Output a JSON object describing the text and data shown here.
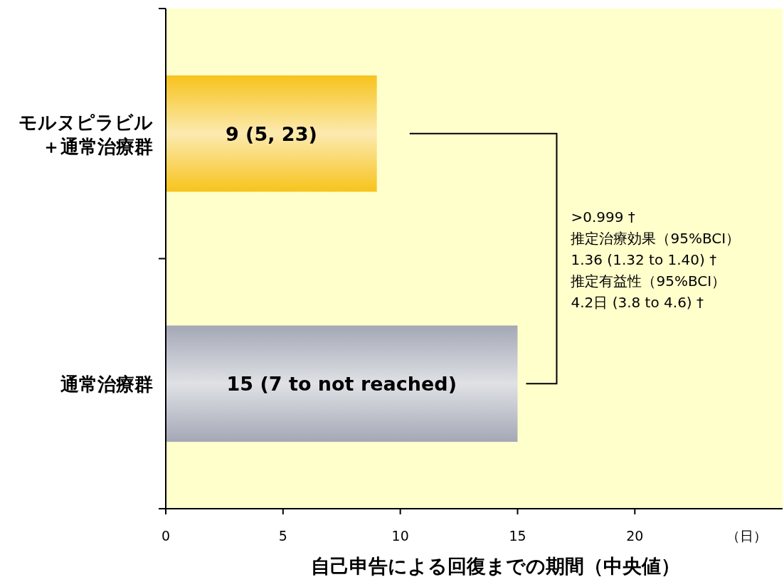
{
  "chart_data": {
    "type": "bar",
    "orientation": "horizontal",
    "categories": [
      "モルヌピラビル＋通常治療群",
      "通常治療群"
    ],
    "values": [
      9,
      15
    ],
    "colors": [
      "#f7c31c",
      "#a4a8b6"
    ],
    "value_labels": [
      "9 (5, 23)",
      "15 (7 to not reached)"
    ],
    "xlim": [
      0,
      26.3
    ],
    "xticks": [
      0,
      5,
      10,
      15,
      20
    ],
    "xlabel": "自己申告による回復までの期間（中央値）",
    "annotations": [
      "（日）",
      ">0.999 †",
      "推定治療効果（95%BCI）",
      "1.36 (1.32 to 1.40) †",
      "推定有益性（95%BCI）",
      "4.2日 (3.8 to 4.6) †"
    ],
    "grid": false
  }
}
